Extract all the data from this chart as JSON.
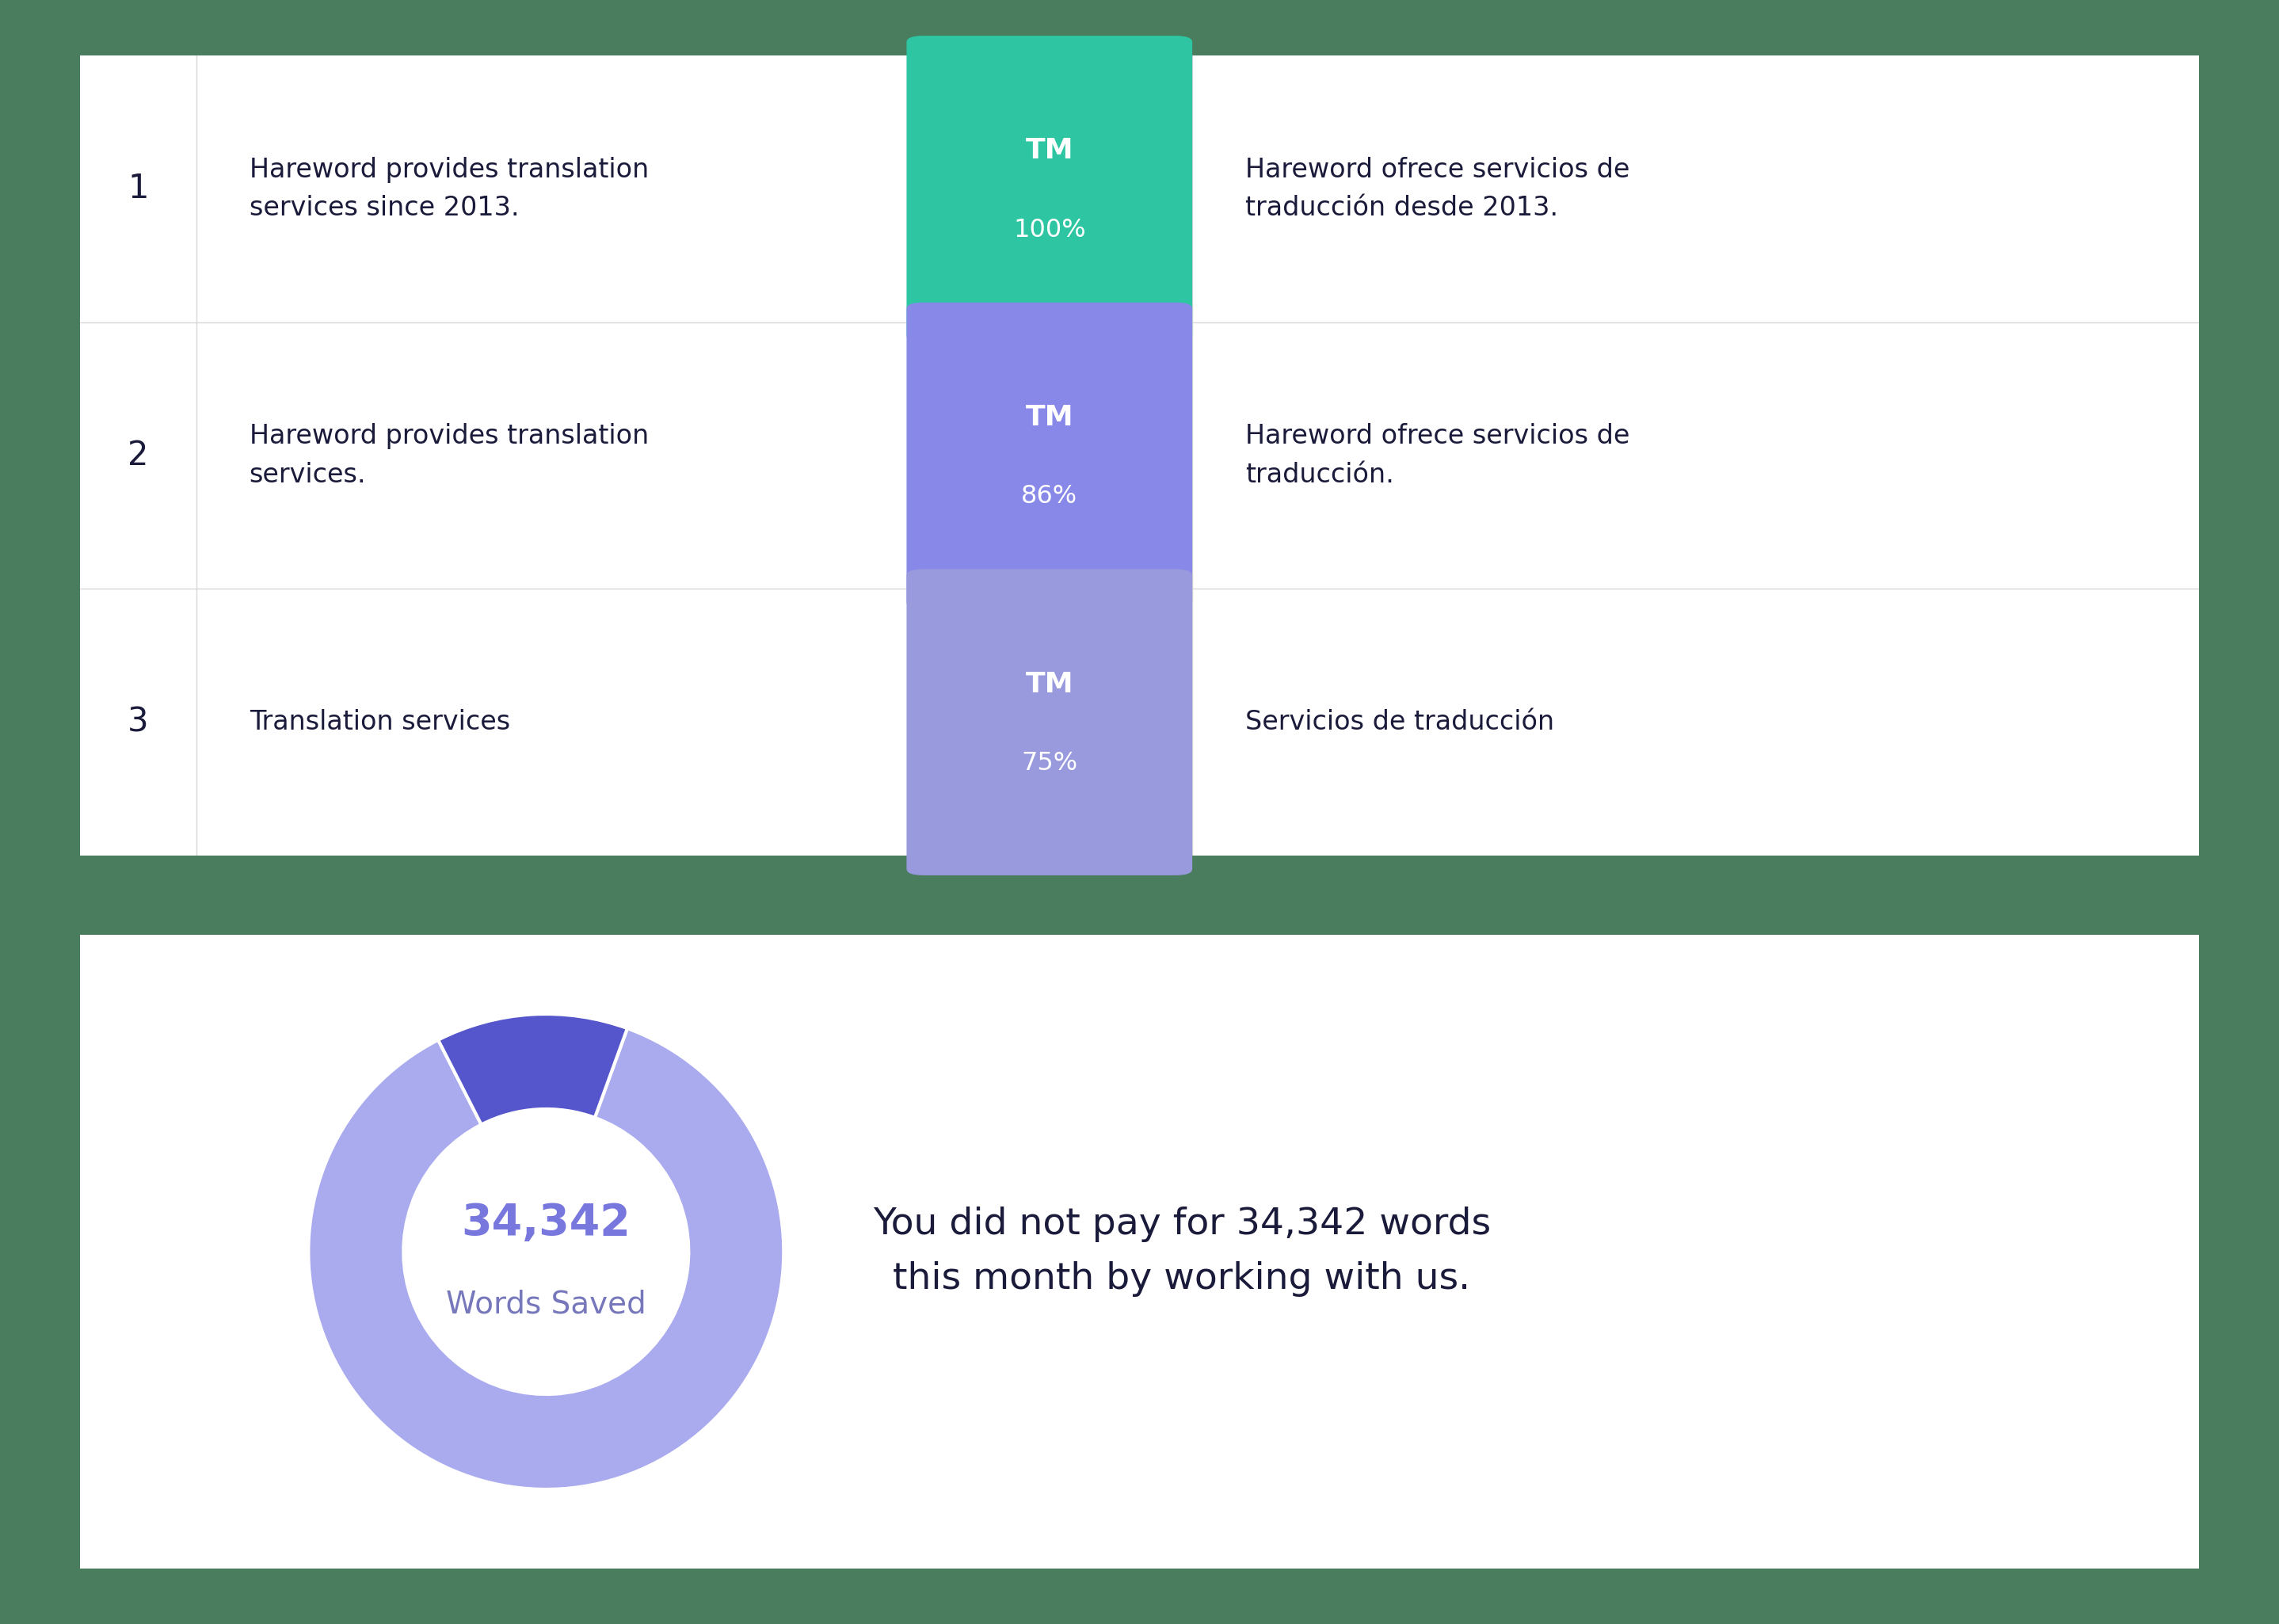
{
  "bg_color": "#4a7c5e",
  "card_color": "#ffffff",
  "rows": [
    {
      "number": "1",
      "source_text": "Hareword provides translation\nservices since 2013.",
      "tm_label": "TM",
      "tm_pct": "100%",
      "tm_color": "#2dc5a2",
      "target_text": "Hareword ofrece servicios de\ntraducción desde 2013."
    },
    {
      "number": "2",
      "source_text": "Hareword provides translation\nservices.",
      "tm_label": "TM",
      "tm_pct": "86%",
      "tm_color": "#8888e8",
      "target_text": "Hareword ofrece servicios de\ntraducción."
    },
    {
      "number": "3",
      "source_text": "Translation services",
      "tm_label": "TM",
      "tm_pct": "75%",
      "tm_color": "#9999dd",
      "target_text": "Servicios de traducción"
    }
  ],
  "donut_saved_str": "34,342",
  "donut_label": "Words Saved",
  "donut_main_color": "#aaaaee",
  "donut_accent_color": "#5555cc",
  "donut_number_color": "#7777dd",
  "donut_label_color": "#7777bb",
  "savings_text_line1": "You did not pay for 34,342 words",
  "savings_text_line2": "this month by working with us.",
  "text_color_dark": "#1a1a3a",
  "divider_color": "#d8d8d8",
  "row_number_color": "#1a1a3a"
}
